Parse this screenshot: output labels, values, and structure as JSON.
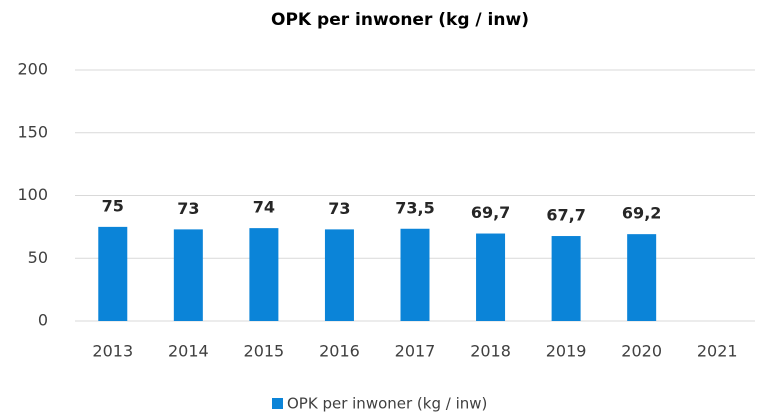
{
  "chart_data": {
    "type": "bar",
    "title": "OPK per inwoner (kg / inw)",
    "categories": [
      "2013",
      "2014",
      "2015",
      "2016",
      "2017",
      "2018",
      "2019",
      "2020",
      "2021"
    ],
    "series": [
      {
        "name": "OPK per inwoner (kg / inw)",
        "color": "#0b84d8",
        "values": [
          75,
          73,
          74,
          73,
          73.5,
          69.7,
          67.7,
          69.2,
          null
        ],
        "value_labels": [
          "75",
          "73",
          "74",
          "73",
          "73,5",
          "69,7",
          "67,7",
          "69,2",
          null
        ]
      }
    ],
    "ylim": [
      0,
      200
    ],
    "yticks": [
      0,
      50,
      100,
      150,
      200
    ],
    "grid": true,
    "legend": "bottom"
  }
}
